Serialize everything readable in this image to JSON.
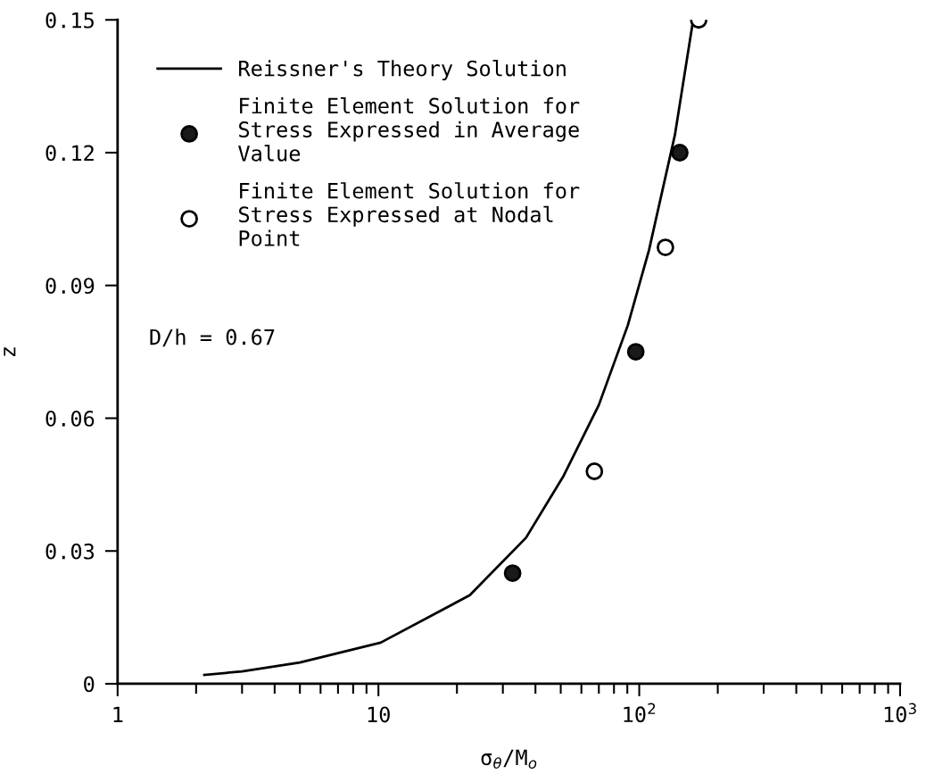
{
  "chart_data": {
    "type": "scatter",
    "xlabel": "σ$_{θ}$/M$_{o}$",
    "ylabel": "z",
    "log": "x",
    "xlim": [
      1,
      1000
    ],
    "ylim": [
      0,
      0.15
    ],
    "xticks": [
      1,
      {
        "value": 2,
        "label": null
      },
      {
        "value": 3,
        "label": null
      },
      {
        "value": 4,
        "label": null
      },
      {
        "value": 5,
        "label": null
      },
      {
        "value": 6,
        "label": null
      },
      {
        "value": 7,
        "label": null
      },
      {
        "value": 8,
        "label": null
      },
      {
        "value": 9,
        "label": null
      },
      10,
      {
        "value": 20,
        "label": null
      },
      {
        "value": 30,
        "label": null
      },
      {
        "value": 40,
        "label": null
      },
      {
        "value": 50,
        "label": null
      },
      {
        "value": 60,
        "label": null
      },
      {
        "value": 70,
        "label": null
      },
      {
        "value": 80,
        "label": null
      },
      {
        "value": 90,
        "label": null
      },
      {
        "value": 100,
        "label": "10$^{2}$"
      },
      {
        "value": 200,
        "label": null
      },
      {
        "value": 300,
        "label": null
      },
      {
        "value": 400,
        "label": null
      },
      {
        "value": 500,
        "label": null
      },
      {
        "value": 600,
        "label": null
      },
      {
        "value": 700,
        "label": null
      },
      {
        "value": 800,
        "label": null
      },
      {
        "value": 900,
        "label": null
      },
      {
        "value": 1000,
        "label": "10$^{3}$"
      }
    ],
    "yticks": [
      0,
      0.03,
      0.06,
      0.09,
      0.12,
      0.15
    ],
    "grid": false,
    "legend": "top left",
    "series": [
      {
        "name": "Reissner's Theory Solution",
        "type": "line",
        "color": "#000000",
        "marker": "none",
        "line_style": "solid",
        "x": [
          2.15,
          3,
          5,
          10.2,
          22.4,
          36.8,
          51.3,
          70,
          90.4,
          109,
          137,
          160
        ],
        "values": [
          0.002,
          0.0028,
          0.0048,
          0.0093,
          0.02,
          0.033,
          0.047,
          0.063,
          0.081,
          0.098,
          0.124,
          0.149
        ]
      },
      {
        "name": "Finite Element Solution for\nStress Expressed in Average\nValue",
        "color": "#1a1a1a",
        "marker": "circle",
        "x": [
          32.7,
          97,
          143
        ],
        "values": [
          0.025,
          0.075,
          0.12
        ]
      },
      {
        "name": "Finite Element Solution for\nStress Expressed at Nodal\nPoint",
        "color": "#ffffff",
        "marker": "circle",
        "x": [
          67.3,
          126,
          169
        ],
        "values": [
          0.048,
          0.0986,
          0.15
        ]
      }
    ],
    "annotations": [
      "D/h = 0.67"
    ]
  }
}
